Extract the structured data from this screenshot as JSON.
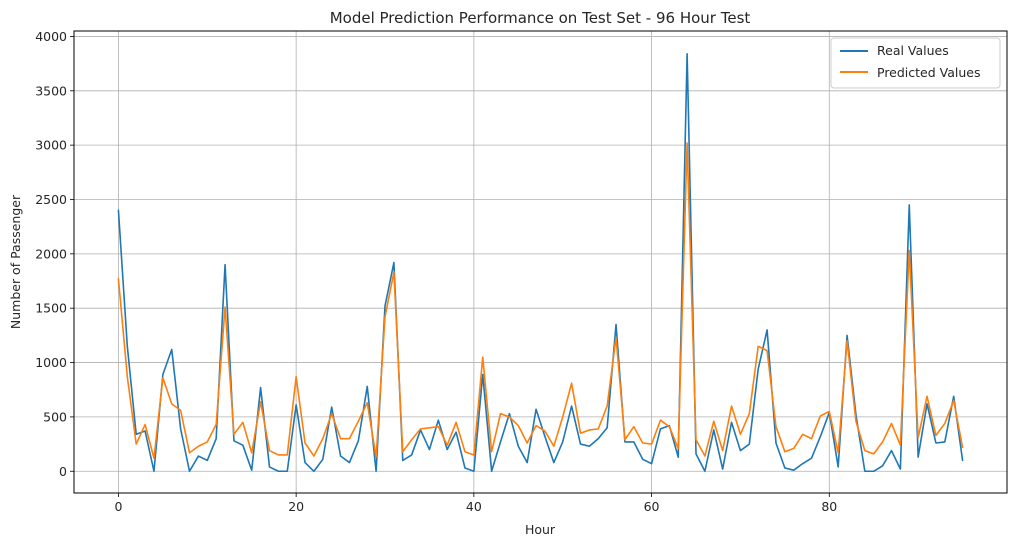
{
  "chart_data": {
    "type": "line",
    "title": "Model Prediction Performance on Test Set - 96 Hour Test",
    "xlabel": "Hour",
    "ylabel": "Number of Passenger",
    "xlim": [
      -5,
      100
    ],
    "ylim": [
      -200,
      4050
    ],
    "xticks": [
      0,
      20,
      40,
      60,
      80
    ],
    "yticks": [
      0,
      500,
      1000,
      1500,
      2000,
      2500,
      3000,
      3500,
      4000
    ],
    "grid": true,
    "legend": "top-right",
    "x": [
      0,
      1,
      2,
      3,
      4,
      5,
      6,
      7,
      8,
      9,
      10,
      11,
      12,
      13,
      14,
      15,
      16,
      17,
      18,
      19,
      20,
      21,
      22,
      23,
      24,
      25,
      26,
      27,
      28,
      29,
      30,
      31,
      32,
      33,
      34,
      35,
      36,
      37,
      38,
      39,
      40,
      41,
      42,
      43,
      44,
      45,
      46,
      47,
      48,
      49,
      50,
      51,
      52,
      53,
      54,
      55,
      56,
      57,
      58,
      59,
      60,
      61,
      62,
      63,
      64,
      65,
      66,
      67,
      68,
      69,
      70,
      71,
      72,
      73,
      74,
      75,
      76,
      77,
      78,
      79,
      80,
      81,
      82,
      83,
      84,
      85,
      86,
      87,
      88,
      89,
      90,
      91,
      92,
      93,
      94,
      95
    ],
    "series": [
      {
        "name": "Real Values",
        "color": "#1f77b4",
        "values": [
          2400,
          1150,
          340,
          370,
          0,
          890,
          1120,
          390,
          0,
          140,
          100,
          300,
          1900,
          280,
          240,
          10,
          770,
          40,
          0,
          0,
          610,
          80,
          0,
          110,
          590,
          140,
          80,
          280,
          780,
          0,
          1520,
          1920,
          100,
          150,
          380,
          200,
          470,
          200,
          360,
          30,
          0,
          890,
          0,
          270,
          530,
          230,
          80,
          570,
          320,
          80,
          270,
          600,
          250,
          230,
          300,
          400,
          1350,
          270,
          270,
          110,
          70,
          390,
          420,
          130,
          3840,
          160,
          0,
          380,
          20,
          450,
          190,
          250,
          940,
          1300,
          260,
          30,
          10,
          70,
          120,
          320,
          540,
          40,
          1250,
          520,
          0,
          0,
          50,
          190,
          20,
          2450,
          130,
          620,
          260,
          270,
          690,
          100
        ]
      },
      {
        "name": "Predicted Values",
        "color": "#ff7f0e",
        "values": [
          1770,
          870,
          250,
          430,
          120,
          860,
          620,
          560,
          170,
          230,
          270,
          430,
          1510,
          340,
          450,
          170,
          640,
          190,
          150,
          150,
          870,
          260,
          140,
          300,
          530,
          300,
          300,
          460,
          630,
          130,
          1420,
          1830,
          180,
          290,
          390,
          400,
          410,
          240,
          450,
          180,
          150,
          1050,
          180,
          530,
          500,
          420,
          260,
          420,
          370,
          230,
          500,
          810,
          350,
          380,
          390,
          600,
          1230,
          290,
          410,
          260,
          250,
          470,
          410,
          210,
          3020,
          290,
          140,
          460,
          190,
          600,
          340,
          530,
          1150,
          1110,
          410,
          180,
          210,
          340,
          300,
          510,
          550,
          170,
          1200,
          460,
          190,
          160,
          270,
          440,
          240,
          2030,
          310,
          690,
          330,
          440,
          650,
          220
        ]
      }
    ]
  }
}
